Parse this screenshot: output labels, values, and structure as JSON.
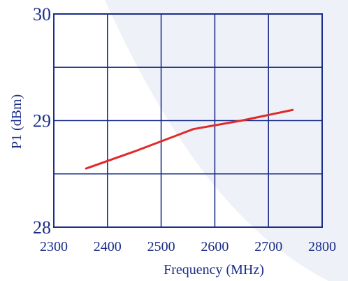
{
  "chart_data": {
    "type": "line",
    "title": "",
    "xlabel": "Frequency (MHz)",
    "ylabel": "P1 (dBm)",
    "xlim": [
      2300,
      2800
    ],
    "ylim": [
      28,
      30
    ],
    "x_ticks": [
      2300,
      2400,
      2500,
      2600,
      2700,
      2800
    ],
    "y_ticks": [
      28,
      29,
      30
    ],
    "x_gridlines": [
      2300,
      2400,
      2500,
      2600,
      2700,
      2800
    ],
    "y_gridlines": [
      28,
      28.5,
      29,
      29.5,
      30
    ],
    "grid": true,
    "series": [
      {
        "x": [
          2360,
          2450,
          2560,
          2650,
          2745
        ],
        "y": [
          28.55,
          28.71,
          28.92,
          29.0,
          29.1
        ]
      }
    ],
    "colors": {
      "grid": "#1a2e8a",
      "text": "#1a2e8a",
      "line": "#e02a2a",
      "background_shape": "#eef1f8"
    }
  }
}
